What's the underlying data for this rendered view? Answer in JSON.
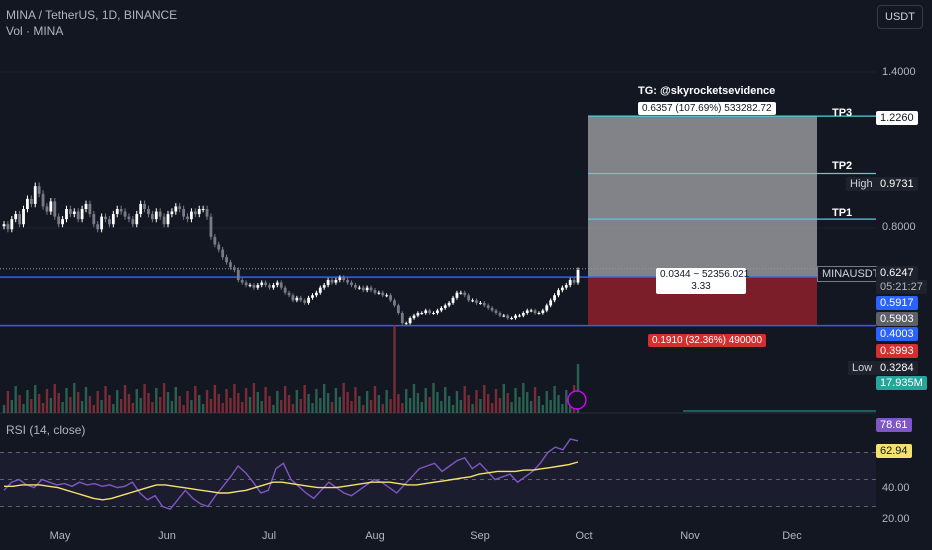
{
  "header": {
    "title": "MINA / TetherUS, 1D, BINANCE",
    "volume_label": "Vol · MINA",
    "currency_button": "USDT"
  },
  "price_axis": {
    "ticks": [
      "1.4000",
      "0.8000"
    ]
  },
  "time_axis": {
    "labels": [
      "May",
      "Jun",
      "Jul",
      "Aug",
      "Sep",
      "Oct",
      "Nov",
      "Dec"
    ]
  },
  "rsi": {
    "label": "RSI (14, close)",
    "ticks": [
      "40.00",
      "20.00"
    ],
    "value": "78.61",
    "ma_value": "62.94"
  },
  "position_tool": {
    "tg_label": "TG: @skyrocketsevidence",
    "target_box": "0.6357 (107.69%) 533282.72",
    "center_line1": "0.0344 ~ 52356.021",
    "center_line2": "3.33",
    "stop_box": "0.1910 (32.36%) 490000",
    "tp_labels": [
      "TP3",
      "TP2",
      "TP1"
    ]
  },
  "tags": {
    "tp3": "1.2260",
    "high_label": "High",
    "high": "0.9731",
    "symbol": "MINAUSDT",
    "last": "0.6247",
    "countdown": "05:21:27",
    "blue1": "0.5917",
    "gray1": "0.5903",
    "blue2": "0.4003",
    "red": "0.3993",
    "low_label": "Low",
    "low": "0.3284",
    "vol": "17.935M"
  },
  "colors": {
    "background": "#131722",
    "up": "#ffffff",
    "down": "#787b86",
    "blue_line": "#2962ff",
    "cyan_line": "#4dd0e1",
    "target_fill": "#8f8f93",
    "stop_fill": "#7b1e2a",
    "rsi_line": "#7e57c2",
    "rsi_ma": "#f5e170"
  },
  "chart_data": {
    "type": "candlestick",
    "symbol": "MINA / TetherUS, 1D, BINANCE",
    "x_axis_months": [
      "May",
      "Jun",
      "Jul",
      "Aug",
      "Sep",
      "Oct",
      "Nov",
      "Dec"
    ],
    "y_range": [
      0.3284,
      1.4
    ],
    "key_levels": {
      "TP3": 1.226,
      "TP2": 1.0,
      "TP1": 0.82,
      "entry": 0.5917,
      "stop": 0.4003,
      "high": 0.9731,
      "low": 0.3284,
      "last": 0.6247
    },
    "close_series": [
      0.8,
      0.78,
      0.82,
      0.84,
      0.8,
      0.86,
      0.9,
      0.88,
      0.95,
      0.92,
      0.87,
      0.85,
      0.89,
      0.83,
      0.8,
      0.82,
      0.86,
      0.84,
      0.85,
      0.82,
      0.86,
      0.88,
      0.84,
      0.8,
      0.78,
      0.83,
      0.82,
      0.8,
      0.84,
      0.86,
      0.85,
      0.83,
      0.82,
      0.8,
      0.84,
      0.88,
      0.86,
      0.84,
      0.82,
      0.85,
      0.83,
      0.8,
      0.84,
      0.85,
      0.87,
      0.86,
      0.83,
      0.82,
      0.85,
      0.84,
      0.86,
      0.86,
      0.83,
      0.75,
      0.72,
      0.7,
      0.67,
      0.65,
      0.63,
      0.62,
      0.58,
      0.57,
      0.56,
      0.56,
      0.55,
      0.56,
      0.57,
      0.56,
      0.55,
      0.56,
      0.57,
      0.55,
      0.53,
      0.52,
      0.5,
      0.51,
      0.5,
      0.49,
      0.51,
      0.52,
      0.53,
      0.55,
      0.56,
      0.58,
      0.57,
      0.58,
      0.59,
      0.58,
      0.57,
      0.56,
      0.55,
      0.55,
      0.54,
      0.55,
      0.54,
      0.53,
      0.53,
      0.52,
      0.52,
      0.5,
      0.48,
      0.45,
      0.41,
      0.41,
      0.43,
      0.44,
      0.45,
      0.45,
      0.46,
      0.45,
      0.45,
      0.46,
      0.47,
      0.48,
      0.49,
      0.51,
      0.53,
      0.53,
      0.52,
      0.5,
      0.5,
      0.49,
      0.49,
      0.48,
      0.47,
      0.46,
      0.45,
      0.44,
      0.44,
      0.43,
      0.43,
      0.44,
      0.44,
      0.45,
      0.46,
      0.46,
      0.45,
      0.45,
      0.46,
      0.48,
      0.5,
      0.52,
      0.54,
      0.55,
      0.56,
      0.58,
      0.57,
      0.62
    ],
    "rsi_series": [
      42,
      48,
      50,
      46,
      44,
      50,
      48,
      46,
      47,
      45,
      48,
      46,
      47,
      45,
      46,
      44,
      45,
      48,
      40,
      35,
      38,
      30,
      28,
      35,
      42,
      36,
      32,
      30,
      38,
      45,
      52,
      60,
      55,
      48,
      40,
      42,
      58,
      62,
      50,
      45,
      40,
      36,
      42,
      48,
      44,
      40,
      38,
      42,
      46,
      50,
      48,
      44,
      40,
      46,
      52,
      58,
      60,
      62,
      56,
      60,
      64,
      66,
      58,
      62,
      56,
      50,
      52,
      54,
      48,
      52,
      56,
      62,
      70,
      74,
      72,
      80,
      78.61
    ],
    "rsi_ma_series": [
      45,
      45,
      46,
      46,
      46,
      45,
      44,
      42,
      40,
      38,
      36,
      35,
      36,
      38,
      40,
      42,
      44,
      46,
      46,
      45,
      44,
      43,
      42,
      41,
      40,
      40,
      41,
      42,
      44,
      46,
      48,
      48,
      47,
      46,
      45,
      44,
      44,
      44,
      45,
      46,
      47,
      48,
      48,
      48,
      47,
      46,
      46,
      47,
      48,
      49,
      50,
      51,
      52,
      54,
      55,
      56,
      56,
      56,
      57,
      57,
      58,
      59,
      60,
      61,
      62.94
    ]
  }
}
